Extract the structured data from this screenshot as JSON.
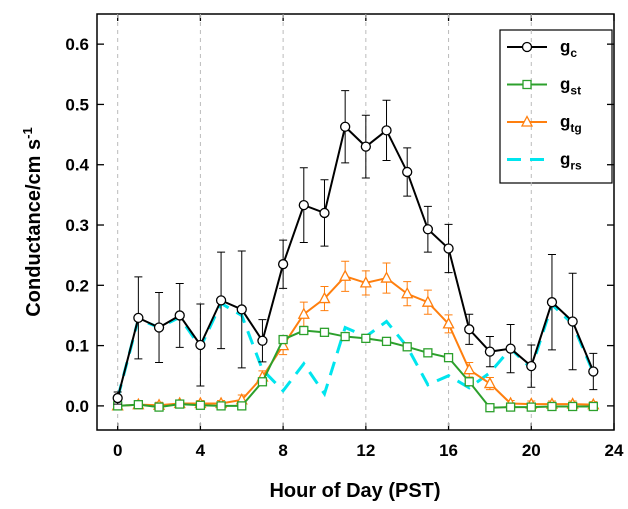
{
  "chart_data": {
    "type": "line",
    "xlabel": "Hour of Day (PST)",
    "ylabel": "Conductance/cm s",
    "ylabel_sup": "-1",
    "x": [
      0,
      1,
      2,
      3,
      4,
      5,
      6,
      7,
      8,
      9,
      10,
      11,
      12,
      13,
      14,
      15,
      16,
      17,
      18,
      19,
      20,
      21,
      22,
      23
    ],
    "xlim": [
      -1,
      24
    ],
    "xticks": [
      0,
      4,
      8,
      12,
      16,
      20,
      24
    ],
    "ylim": [
      -0.04,
      0.65
    ],
    "yticks": [
      {
        "value": 0,
        "label": "0.0"
      },
      0.1,
      0.2,
      0.3,
      0.4,
      0.5,
      0.6
    ],
    "grid": true,
    "legend": "upper right",
    "series": [
      {
        "name": "g",
        "subscript": "c",
        "color": "#000000",
        "marker": "circle",
        "dashed": false,
        "values": [
          0.013,
          0.146,
          0.13,
          0.15,
          0.101,
          0.175,
          0.16,
          0.108,
          0.235,
          0.333,
          0.32,
          0.463,
          0.43,
          0.457,
          0.388,
          0.293,
          0.261,
          0.127,
          0.09,
          0.095,
          0.066,
          0.172,
          0.14,
          0.057
        ],
        "errors": [
          0.01,
          0.068,
          0.058,
          0.053,
          0.068,
          0.08,
          0.097,
          0.035,
          0.04,
          0.062,
          0.055,
          0.06,
          0.052,
          0.05,
          0.04,
          0.038,
          0.04,
          0.025,
          0.025,
          0.04,
          0.035,
          0.079,
          0.08,
          0.03
        ]
      },
      {
        "name": "g",
        "subscript": "st",
        "color": "#2ca02c",
        "marker": "square",
        "dashed": false,
        "values": [
          0.0,
          0.002,
          -0.002,
          0.003,
          0.001,
          0.0,
          0.0,
          0.04,
          0.11,
          0.125,
          0.122,
          0.115,
          0.112,
          0.107,
          0.098,
          0.088,
          0.08,
          0.04,
          -0.003,
          -0.002,
          -0.002,
          -0.001,
          -0.001,
          -0.001
        ]
      },
      {
        "name": "g",
        "subscript": "tg",
        "color": "#ff7f0e",
        "marker": "triangle",
        "dashed": false,
        "values": [
          0.0,
          0.002,
          0.001,
          0.004,
          0.004,
          0.004,
          0.01,
          0.048,
          0.1,
          0.152,
          0.178,
          0.215,
          0.204,
          0.212,
          0.186,
          0.172,
          0.136,
          0.06,
          0.037,
          0.004,
          0.003,
          0.003,
          0.003,
          0.002
        ],
        "errors": [
          0.005,
          0.005,
          0.005,
          0.005,
          0.005,
          0.005,
          0.008,
          0.01,
          0.015,
          0.02,
          0.02,
          0.025,
          0.02,
          0.025,
          0.02,
          0.02,
          0.015,
          0.012,
          0.01,
          0.005,
          0.005,
          0.005,
          0.005,
          0.005
        ]
      },
      {
        "name": "g",
        "subscript": "rs",
        "color": "#00e5ee",
        "marker": "none",
        "dashed": true,
        "values": [
          0.013,
          0.144,
          0.13,
          0.147,
          0.097,
          0.17,
          0.15,
          0.06,
          0.025,
          0.07,
          0.02,
          0.13,
          0.115,
          0.14,
          0.098,
          0.035,
          0.05,
          0.03,
          0.055,
          0.095,
          0.062,
          0.168,
          0.136,
          0.055
        ]
      }
    ]
  }
}
